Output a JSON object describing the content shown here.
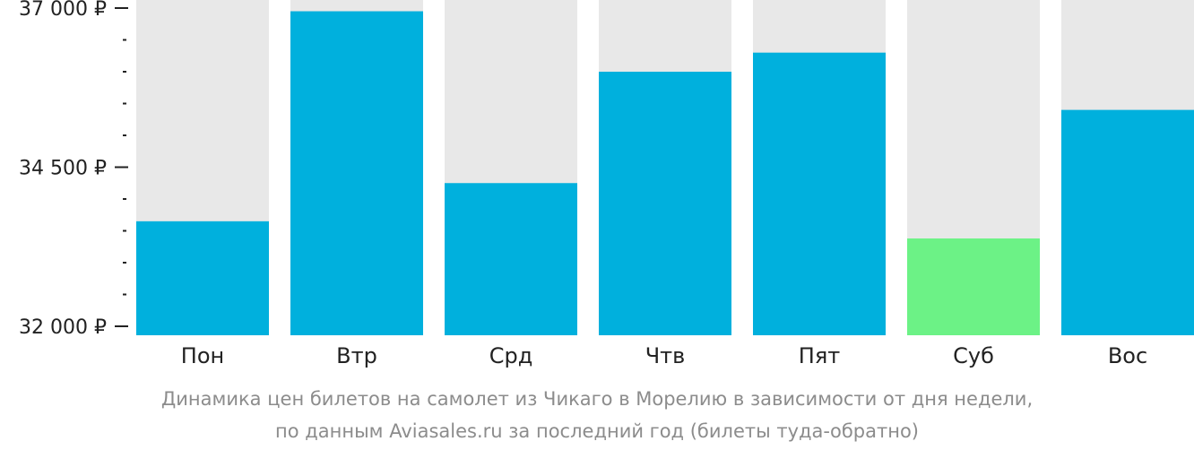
{
  "chart_data": {
    "type": "bar",
    "categories": [
      "Пон",
      "Втр",
      "Срд",
      "Чтв",
      "Пят",
      "Суб",
      "Вос"
    ],
    "values": [
      33650,
      36950,
      34250,
      36000,
      36300,
      33380,
      35400
    ],
    "highlight_index": 5,
    "ylim": [
      32000,
      37000
    ],
    "y_ticks": [
      {
        "value": 32000,
        "label": "32 000 ₽"
      },
      {
        "value": 34500,
        "label": "34 500 ₽"
      },
      {
        "value": 37000,
        "label": "37 000 ₽"
      }
    ],
    "minor_tick_step": 500,
    "colors": {
      "bar": "#00b0dd",
      "bar_highlight": "#6cf286",
      "bar_background": "#e8e8e8",
      "axis": "#222222"
    }
  },
  "caption": {
    "line1": "Динамика цен билетов на самолет из Чикаго в Морелию в зависимости от дня недели,",
    "line2": "по данным Aviasales.ru за последний год (билеты туда-обратно)"
  }
}
